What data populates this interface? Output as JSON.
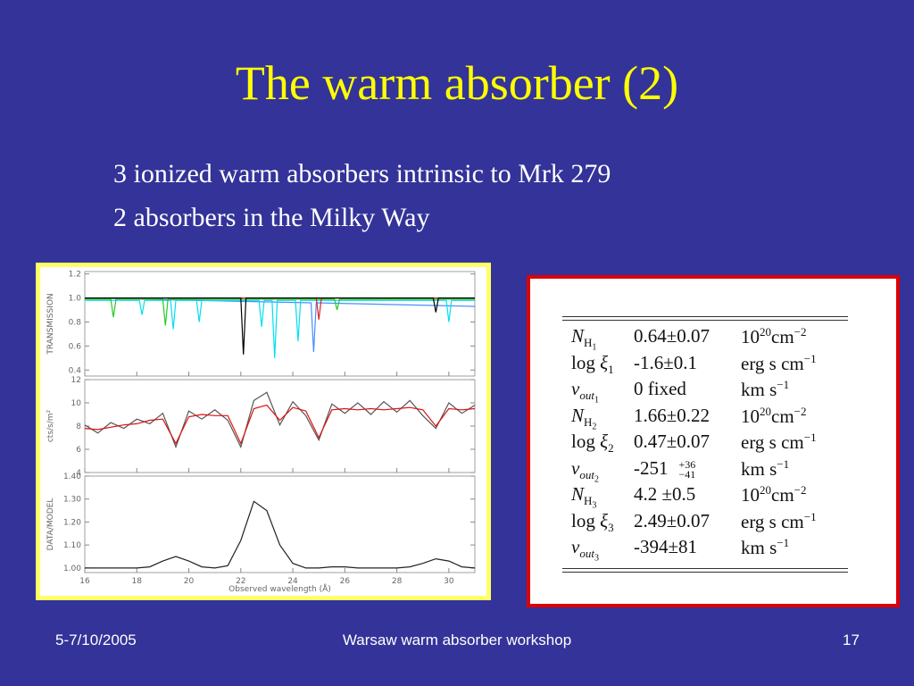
{
  "header": {
    "title": "The warm absorber (2)"
  },
  "bullets": [
    "3 ionized warm absorbers intrinsic to Mrk 279",
    "2 absorbers in the Milky Way"
  ],
  "figure": {
    "x_label": "Observed wavelength (Å)",
    "xlim": [
      16,
      31
    ],
    "xticks": [
      16,
      18,
      20,
      22,
      24,
      26,
      28,
      30
    ],
    "panels": [
      {
        "y_label": "TRANSMISSION",
        "ylim": [
          0.35,
          1.22
        ],
        "yticks": [
          0.4,
          0.6,
          0.8,
          {
            "value": 1,
            "label": "1.0"
          },
          1.2
        ],
        "series": [
          {
            "color": "#4a8cff",
            "x": [
              16,
              24.7,
              24.8,
              24.9,
              31
            ],
            "values": [
              1.0,
              0.96,
              0.55,
              0.96,
              0.93
            ]
          },
          {
            "color": "#00e0f0",
            "x": [
              16,
              18.1,
              18.2,
              18.3,
              19.3,
              19.4,
              19.5,
              20.3,
              20.4,
              20.5,
              22.7,
              22.8,
              22.9,
              23.2,
              23.3,
              23.4,
              24.1,
              24.2,
              24.3,
              29.9,
              30.0,
              30.1,
              31
            ],
            "values": [
              0.98,
              0.98,
              0.86,
              0.98,
              0.98,
              0.74,
              0.98,
              0.98,
              0.8,
              0.98,
              0.98,
              0.76,
              0.98,
              0.98,
              0.5,
              0.98,
              0.98,
              0.64,
              0.98,
              0.98,
              0.8,
              0.98,
              0.98
            ]
          },
          {
            "color": "#22cc22",
            "x": [
              16,
              17.0,
              17.1,
              17.2,
              19.0,
              19.1,
              19.2,
              25.6,
              25.7,
              25.8,
              31
            ],
            "values": [
              0.99,
              0.99,
              0.84,
              0.99,
              0.99,
              0.77,
              0.99,
              0.99,
              0.9,
              0.99,
              0.99
            ]
          },
          {
            "color": "#dd2222",
            "x": [
              16,
              24.9,
              25.0,
              25.1,
              31
            ],
            "values": [
              1.0,
              1.0,
              0.82,
              1.0,
              1.0
            ]
          },
          {
            "color": "#000000",
            "x": [
              16,
              22.0,
              22.1,
              22.2,
              29.4,
              29.5,
              29.6,
              31
            ],
            "values": [
              1.0,
              1.0,
              0.53,
              1.0,
              1.0,
              0.88,
              1.0,
              1.0
            ]
          }
        ]
      },
      {
        "y_label": "cts/s/m²",
        "ylim": [
          4,
          12
        ],
        "yticks": [
          4,
          6,
          8,
          10,
          12
        ],
        "series": [
          {
            "color": "#555555",
            "x": [
              16,
              16.5,
              17,
              17.5,
              18,
              18.5,
              19,
              19.5,
              20,
              20.5,
              21,
              21.5,
              22,
              22.5,
              23,
              23.5,
              24,
              24.5,
              25,
              25.5,
              26,
              26.5,
              27,
              27.5,
              28,
              28.5,
              29,
              29.5,
              30,
              30.5,
              31
            ],
            "values": [
              8.1,
              7.4,
              8.3,
              7.8,
              8.6,
              8.2,
              9.1,
              6.2,
              9.3,
              8.6,
              9.4,
              8.5,
              6.2,
              10.2,
              10.9,
              8.1,
              10.1,
              8.9,
              6.8,
              9.9,
              9.1,
              10.0,
              9.0,
              10.1,
              9.2,
              10.2,
              8.9,
              7.8,
              10.0,
              9.1,
              9.8
            ]
          },
          {
            "color": "#dd1111",
            "x": [
              16,
              16.5,
              17,
              17.5,
              18,
              18.5,
              19,
              19.5,
              20,
              20.5,
              21,
              21.5,
              22,
              22.5,
              23,
              23.5,
              24,
              24.5,
              25,
              25.5,
              26,
              26.5,
              27,
              27.5,
              28,
              28.5,
              29,
              29.5,
              30,
              30.5,
              31
            ],
            "values": [
              7.8,
              7.7,
              7.9,
              8.1,
              8.2,
              8.5,
              8.6,
              6.5,
              8.8,
              9.0,
              8.9,
              8.9,
              6.5,
              9.5,
              9.8,
              8.5,
              9.6,
              9.3,
              7.0,
              9.4,
              9.5,
              9.4,
              9.5,
              9.4,
              9.5,
              9.6,
              9.4,
              8.0,
              9.5,
              9.4,
              9.5
            ]
          }
        ]
      },
      {
        "y_label": "DATA/MODEL",
        "ylim": [
          0.98,
          1.4
        ],
        "yticks": [
          {
            "value": 1,
            "label": "1.00"
          },
          {
            "value": 1.1,
            "label": "1.10"
          },
          {
            "value": 1.2,
            "label": "1.20"
          },
          {
            "value": 1.3,
            "label": "1.30"
          },
          {
            "value": 1.4,
            "label": "1.40"
          }
        ],
        "series": [
          {
            "color": "#222222",
            "x": [
              16,
              16.5,
              17,
              17.5,
              18,
              18.5,
              19,
              19.5,
              20,
              20.5,
              21,
              21.5,
              22,
              22.5,
              23,
              23.5,
              24,
              24.5,
              25,
              25.5,
              26,
              26.5,
              27,
              27.5,
              28,
              28.5,
              29,
              29.5,
              30,
              30.5,
              31
            ],
            "values": [
              1.0,
              1.0,
              1.0,
              1.0,
              1.0,
              1.005,
              1.03,
              1.05,
              1.03,
              1.005,
              1.0,
              1.01,
              1.12,
              1.29,
              1.25,
              1.1,
              1.02,
              1.0,
              1.0,
              1.005,
              1.005,
              1.0,
              1.0,
              1.0,
              1.0,
              1.005,
              1.02,
              1.04,
              1.03,
              1.005,
              1.0
            ]
          }
        ]
      }
    ]
  },
  "table": {
    "rows": [
      {
        "symbol": "N",
        "sub": "H",
        "index": "1",
        "value": "0.64±0.07",
        "unit_prefix": "10",
        "unit_prefix_exp": "20",
        "unit": "cm",
        "unit_exp": "−2"
      },
      {
        "prefix": "log",
        "symbol": "ξ",
        "index": "1",
        "value": "-1.6±0.1",
        "unit": "erg s cm",
        "unit_exp": "−1"
      },
      {
        "symbol": "v",
        "sub": "out",
        "index": "1",
        "value": "0 fixed",
        "unit": "km s",
        "unit_exp": "−1"
      },
      {
        "symbol": "N",
        "sub": "H",
        "index": "2",
        "value": "1.66±0.22",
        "unit_prefix": "10",
        "unit_prefix_exp": "20",
        "unit": "cm",
        "unit_exp": "−2"
      },
      {
        "prefix": "log",
        "symbol": "ξ",
        "index": "2",
        "value": "0.47±0.07",
        "unit": "erg s cm",
        "unit_exp": "−1"
      },
      {
        "symbol": "v",
        "sub": "out",
        "index": "2",
        "value": "-251",
        "err_plus": "+36",
        "err_minus": "−41",
        "unit": "km s",
        "unit_exp": "−1"
      },
      {
        "symbol": "N",
        "sub": "H",
        "index": "3",
        "value": "4.2 ±0.5",
        "unit_prefix": "10",
        "unit_prefix_exp": "20",
        "unit": "cm",
        "unit_exp": "−2"
      },
      {
        "prefix": "log",
        "symbol": "ξ",
        "index": "3",
        "value": "2.49±0.07",
        "unit": "erg s cm",
        "unit_exp": "−1"
      },
      {
        "symbol": "v",
        "sub": "out",
        "index": "3",
        "value": "-394±81",
        "unit": "km s",
        "unit_exp": "−1"
      }
    ]
  },
  "footer": {
    "date": "5-7/10/2005",
    "event": "Warsaw warm absorber workshop",
    "page": "17"
  }
}
